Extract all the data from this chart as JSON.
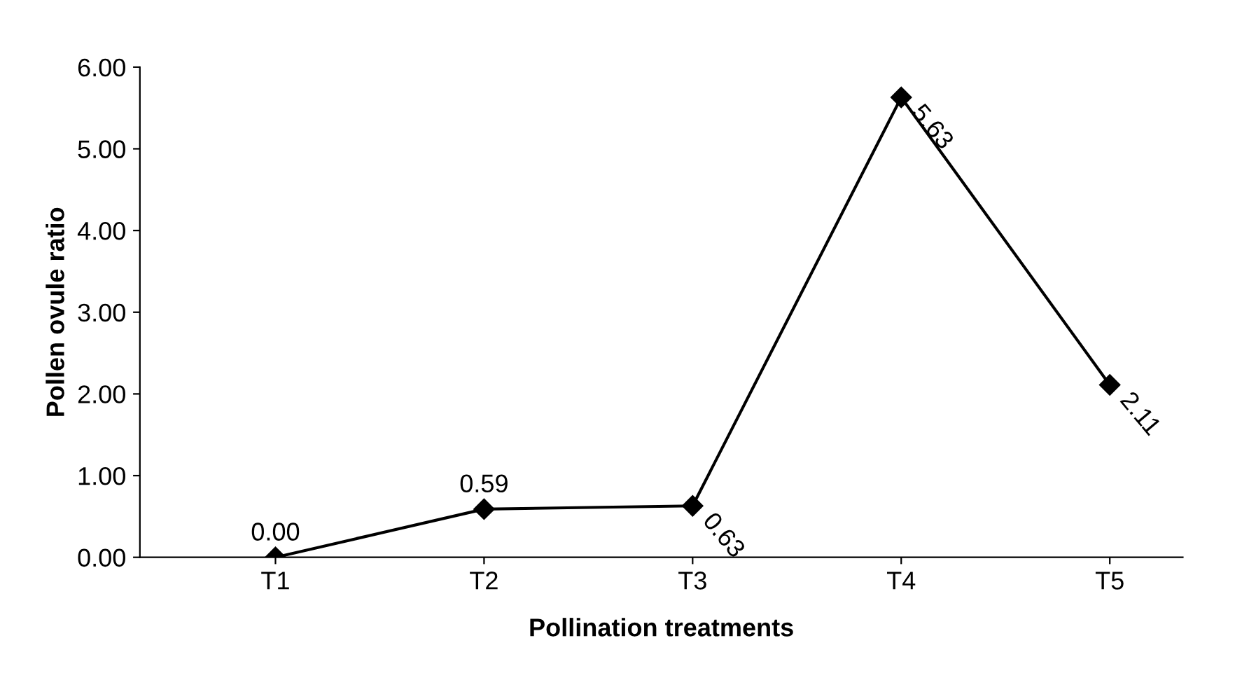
{
  "chart_data": {
    "type": "line",
    "xlabel": "Pollination treatments",
    "ylabel": "Pollen ovule ratio",
    "categories": [
      "T1",
      "T2",
      "T3",
      "T4",
      "T5"
    ],
    "series": [
      {
        "color": "#000000",
        "values": [
          0.0,
          0.59,
          0.63,
          5.63,
          2.11
        ],
        "value_labels": [
          "0.00",
          "0.59",
          "0.63",
          "5.63",
          "2.11"
        ]
      }
    ],
    "ylim": [
      0,
      6
    ],
    "yticks": [
      {
        "value": 0,
        "label": "0.00"
      },
      {
        "value": 1,
        "label": "1.00"
      },
      {
        "value": 2,
        "label": "2.00"
      },
      {
        "value": 3,
        "label": "3.00"
      },
      {
        "value": 4,
        "label": "4.00"
      },
      {
        "value": 5,
        "label": "5.00"
      },
      {
        "value": 6,
        "label": "6.00"
      }
    ],
    "marker": "diamond",
    "line_style": "solid",
    "grid": false,
    "legend": false
  }
}
